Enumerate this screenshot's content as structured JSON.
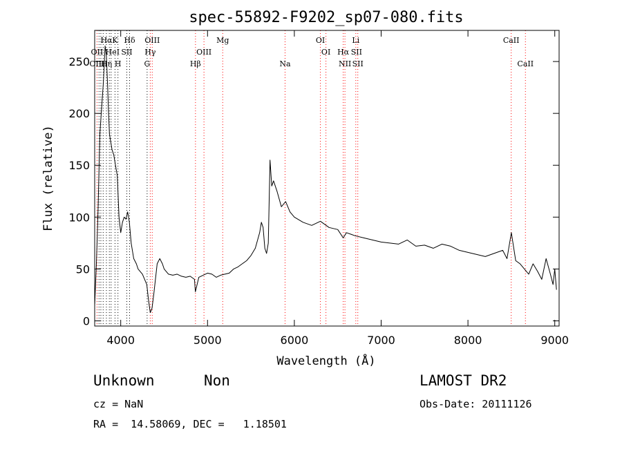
{
  "chart_data": {
    "type": "line",
    "title": "spec-55892-F9202_sp07-080.fits",
    "xlabel": "Wavelength (Å)",
    "ylabel": "Flux (relative)",
    "xlim": [
      3700,
      9050
    ],
    "ylim": [
      -5,
      280
    ],
    "xticks": [
      4000,
      5000,
      6000,
      7000,
      8000,
      9000
    ],
    "yticks": [
      0,
      50,
      100,
      150,
      200,
      250
    ],
    "grid": false,
    "series": [
      {
        "color": "#000000",
        "x": [
          3700,
          3720,
          3740,
          3760,
          3780,
          3800,
          3820,
          3835,
          3850,
          3860,
          3870,
          3880,
          3900,
          3920,
          3940,
          3960,
          3980,
          4000,
          4020,
          4040,
          4060,
          4080,
          4100,
          4120,
          4150,
          4180,
          4200,
          4250,
          4300,
          4320,
          4340,
          4360,
          4380,
          4400,
          4420,
          4450,
          4480,
          4500,
          4550,
          4600,
          4650,
          4700,
          4750,
          4800,
          4850,
          4860,
          4900,
          4950,
          5000,
          5050,
          5100,
          5150,
          5200,
          5250,
          5300,
          5350,
          5400,
          5450,
          5500,
          5550,
          5600,
          5620,
          5640,
          5660,
          5680,
          5700,
          5720,
          5740,
          5760,
          5800,
          5850,
          5900,
          5950,
          6000,
          6100,
          6200,
          6300,
          6400,
          6500,
          6563,
          6600,
          6700,
          6800,
          6900,
          7000,
          7100,
          7200,
          7300,
          7400,
          7500,
          7600,
          7700,
          7800,
          7900,
          8000,
          8100,
          8200,
          8300,
          8400,
          8450,
          8500,
          8550,
          8600,
          8650,
          8700,
          8750,
          8800,
          8850,
          8900,
          8950,
          8980,
          9000,
          9020
        ],
        "y": [
          15,
          55,
          110,
          180,
          205,
          230,
          265,
          255,
          225,
          200,
          180,
          175,
          165,
          160,
          150,
          140,
          100,
          85,
          95,
          100,
          98,
          105,
          95,
          75,
          60,
          55,
          50,
          45,
          35,
          20,
          8,
          12,
          25,
          40,
          55,
          60,
          55,
          50,
          45,
          44,
          45,
          43,
          42,
          43,
          40,
          28,
          42,
          44,
          46,
          45,
          42,
          44,
          45,
          46,
          50,
          52,
          55,
          58,
          63,
          70,
          85,
          95,
          90,
          70,
          65,
          75,
          155,
          130,
          135,
          125,
          110,
          115,
          105,
          100,
          95,
          92,
          96,
          90,
          88,
          80,
          85,
          82,
          80,
          78,
          76,
          75,
          74,
          78,
          72,
          73,
          70,
          74,
          72,
          68,
          66,
          64,
          62,
          65,
          68,
          60,
          85,
          58,
          55,
          50,
          45,
          55,
          48,
          40,
          60,
          45,
          35,
          50,
          30
        ]
      }
    ],
    "lines_top": [
      {
        "label": "Hα",
        "row": 0,
        "x": 3835
      },
      {
        "label": "K",
        "row": 0,
        "x": 3934
      },
      {
        "label": "Hδ",
        "row": 0,
        "x": 4102
      },
      {
        "label": "OIII",
        "row": 0,
        "x": 4363
      },
      {
        "label": "Mg",
        "row": 0,
        "x": 5175
      },
      {
        "label": "OI",
        "row": 0,
        "x": 6300
      },
      {
        "label": "Li",
        "row": 0,
        "x": 6708
      },
      {
        "label": "CaII",
        "row": 0,
        "x": 8498
      },
      {
        "label": "OII",
        "row": 1,
        "x": 3727
      },
      {
        "label": "He",
        "row": 1,
        "x": 3889
      },
      {
        "label": "I",
        "row": 1,
        "x": 3970
      },
      {
        "label": "SII",
        "row": 1,
        "x": 4070
      },
      {
        "label": "Hγ",
        "row": 1,
        "x": 4340
      },
      {
        "label": "OIII",
        "row": 1,
        "x": 4959
      },
      {
        "label": "OI",
        "row": 1,
        "x": 6364
      },
      {
        "label": "Hα",
        "row": 1,
        "x": 6563
      },
      {
        "label": "SII",
        "row": 1,
        "x": 6716
      },
      {
        "label": "OIII",
        "row": 2,
        "x": 3727
      },
      {
        "label": "Hη",
        "row": 2,
        "x": 3835
      },
      {
        "label": "H",
        "row": 2,
        "x": 3968
      },
      {
        "label": "G",
        "row": 2,
        "x": 4304
      },
      {
        "label": "Hβ",
        "row": 2,
        "x": 4861
      },
      {
        "label": "Na",
        "row": 2,
        "x": 5893
      },
      {
        "label": "NII",
        "row": 2,
        "x": 6583
      },
      {
        "label": "SII",
        "row": 2,
        "x": 6731
      },
      {
        "label": "CaII",
        "row": 2,
        "x": 8662
      }
    ],
    "lines_dotted": [
      {
        "x": 3727,
        "color": "#ff0000"
      },
      {
        "x": 3750,
        "color": "#000000"
      },
      {
        "x": 3771,
        "color": "#000000"
      },
      {
        "x": 3798,
        "color": "#000000"
      },
      {
        "x": 3835,
        "color": "#000000"
      },
      {
        "x": 3869,
        "color": "#000000"
      },
      {
        "x": 3889,
        "color": "#000000"
      },
      {
        "x": 3934,
        "color": "#000000"
      },
      {
        "x": 3968,
        "color": "#000000"
      },
      {
        "x": 4070,
        "color": "#000000"
      },
      {
        "x": 4102,
        "color": "#000000"
      },
      {
        "x": 4304,
        "color": "#000000"
      },
      {
        "x": 4340,
        "color": "#ff0000"
      },
      {
        "x": 4363,
        "color": "#ff0000"
      },
      {
        "x": 4861,
        "color": "#ff0000"
      },
      {
        "x": 4959,
        "color": "#ff0000"
      },
      {
        "x": 5175,
        "color": "#ff0000"
      },
      {
        "x": 5893,
        "color": "#ff0000"
      },
      {
        "x": 6300,
        "color": "#ff0000"
      },
      {
        "x": 6364,
        "color": "#ff0000"
      },
      {
        "x": 6563,
        "color": "#ff0000"
      },
      {
        "x": 6583,
        "color": "#ff0000"
      },
      {
        "x": 6708,
        "color": "#ff0000"
      },
      {
        "x": 6731,
        "color": "#ff0000"
      },
      {
        "x": 8498,
        "color": "#ff0000"
      },
      {
        "x": 8662,
        "color": "#ff0000"
      }
    ]
  },
  "info": {
    "class_label": "Unknown",
    "subclass_label": "Non",
    "survey": "LAMOST DR2",
    "cz": "cz = NaN",
    "obs_date": "Obs-Date: 20111126",
    "coords": "RA =  14.58069, DEC =   1.18501"
  }
}
